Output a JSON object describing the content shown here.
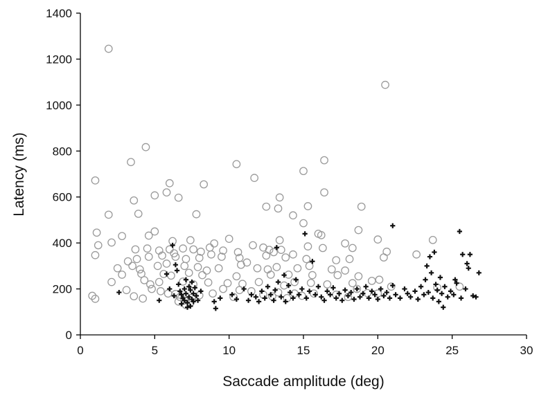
{
  "chart_data": {
    "type": "scatter",
    "title": "",
    "xlabel": "Saccade amplitude (deg)",
    "ylabel": "Latency (ms)",
    "xlim": [
      0,
      30
    ],
    "ylim": [
      0,
      1400
    ],
    "xticks": [
      0,
      5,
      10,
      15,
      20,
      25,
      30
    ],
    "yticks": [
      0,
      200,
      400,
      600,
      800,
      1000,
      1200,
      1400
    ],
    "xtick_labels": [
      "0",
      "5",
      "10",
      "15",
      "20",
      "25",
      "30"
    ],
    "ytick_labels": [
      "0",
      "200",
      "400",
      "600",
      "800",
      "1000",
      "1200",
      "1400"
    ],
    "grid": false,
    "legend": "none",
    "series": [
      {
        "marker": "open-circle",
        "color": "#9a9a9a",
        "points": [
          [
            1.9,
            1245
          ],
          [
            20.5,
            1088
          ],
          [
            4.4,
            817
          ],
          [
            3.4,
            752
          ],
          [
            10.5,
            743
          ],
          [
            16.4,
            760
          ],
          [
            15.0,
            713
          ],
          [
            1.0,
            672
          ],
          [
            11.7,
            683
          ],
          [
            6.0,
            660
          ],
          [
            8.3,
            655
          ],
          [
            16.4,
            620
          ],
          [
            5.8,
            620
          ],
          [
            13.4,
            598
          ],
          [
            5.0,
            607
          ],
          [
            6.6,
            597
          ],
          [
            3.6,
            585
          ],
          [
            12.5,
            558
          ],
          [
            15.3,
            560
          ],
          [
            13.3,
            550
          ],
          [
            18.9,
            558
          ],
          [
            1.9,
            523
          ],
          [
            7.8,
            525
          ],
          [
            3.9,
            527
          ],
          [
            14.3,
            520
          ],
          [
            15.0,
            486
          ],
          [
            18.7,
            456
          ],
          [
            1.1,
            445
          ],
          [
            2.8,
            430
          ],
          [
            4.6,
            432
          ],
          [
            5.0,
            450
          ],
          [
            6.2,
            408
          ],
          [
            7.4,
            412
          ],
          [
            10.0,
            418
          ],
          [
            13.4,
            412
          ],
          [
            16.0,
            440
          ],
          [
            16.2,
            434
          ],
          [
            20.0,
            415
          ],
          [
            23.7,
            413
          ],
          [
            1.2,
            390
          ],
          [
            2.1,
            402
          ],
          [
            3.7,
            372
          ],
          [
            4.5,
            376
          ],
          [
            5.3,
            367
          ],
          [
            6.0,
            372
          ],
          [
            6.3,
            355
          ],
          [
            6.9,
            376
          ],
          [
            7.6,
            372
          ],
          [
            8.1,
            362
          ],
          [
            8.7,
            380
          ],
          [
            9.0,
            398
          ],
          [
            9.6,
            367
          ],
          [
            10.6,
            360
          ],
          [
            11.6,
            390
          ],
          [
            12.3,
            380
          ],
          [
            12.7,
            370
          ],
          [
            13.0,
            360
          ],
          [
            13.5,
            370
          ],
          [
            14.3,
            350
          ],
          [
            15.3,
            385
          ],
          [
            16.3,
            378
          ],
          [
            17.8,
            398
          ],
          [
            18.3,
            378
          ],
          [
            20.6,
            362
          ],
          [
            20.4,
            337
          ],
          [
            22.6,
            350
          ],
          [
            1.0,
            347
          ],
          [
            3.2,
            320
          ],
          [
            3.8,
            330
          ],
          [
            4.6,
            340
          ],
          [
            5.5,
            345
          ],
          [
            6.4,
            340
          ],
          [
            7.1,
            330
          ],
          [
            8.0,
            335
          ],
          [
            8.8,
            350
          ],
          [
            9.5,
            340
          ],
          [
            10.7,
            335
          ],
          [
            11.2,
            315
          ],
          [
            12.5,
            345
          ],
          [
            13.8,
            337
          ],
          [
            15.2,
            330
          ],
          [
            17.2,
            325
          ],
          [
            18.1,
            330
          ],
          [
            2.5,
            290
          ],
          [
            3.5,
            300
          ],
          [
            4.0,
            285
          ],
          [
            5.2,
            300
          ],
          [
            5.8,
            310
          ],
          [
            7.0,
            300
          ],
          [
            7.9,
            295
          ],
          [
            8.5,
            280
          ],
          [
            9.3,
            290
          ],
          [
            10.8,
            305
          ],
          [
            11.9,
            290
          ],
          [
            12.6,
            285
          ],
          [
            13.2,
            295
          ],
          [
            14.6,
            290
          ],
          [
            15.4,
            300
          ],
          [
            16.9,
            285
          ],
          [
            17.8,
            280
          ],
          [
            2.8,
            262
          ],
          [
            4.1,
            266
          ],
          [
            5.6,
            265
          ],
          [
            6.1,
            258
          ],
          [
            7.3,
            270
          ],
          [
            8.2,
            260
          ],
          [
            10.5,
            255
          ],
          [
            12.8,
            262
          ],
          [
            14.0,
            262
          ],
          [
            15.6,
            260
          ],
          [
            17.3,
            260
          ],
          [
            18.7,
            255
          ],
          [
            2.1,
            230
          ],
          [
            4.3,
            238
          ],
          [
            4.7,
            220
          ],
          [
            5.3,
            230
          ],
          [
            6.9,
            232
          ],
          [
            7.6,
            220
          ],
          [
            8.6,
            228
          ],
          [
            9.9,
            225
          ],
          [
            10.9,
            222
          ],
          [
            12.0,
            230
          ],
          [
            13.7,
            215
          ],
          [
            14.4,
            230
          ],
          [
            15.5,
            226
          ],
          [
            16.6,
            220
          ],
          [
            18.3,
            225
          ],
          [
            19.6,
            235
          ],
          [
            20.1,
            240
          ],
          [
            25.5,
            210
          ],
          [
            0.8,
            170
          ],
          [
            1.0,
            157
          ],
          [
            3.1,
            195
          ],
          [
            3.6,
            168
          ],
          [
            4.2,
            158
          ],
          [
            4.8,
            200
          ],
          [
            5.4,
            190
          ],
          [
            5.9,
            180
          ],
          [
            6.4,
            178
          ],
          [
            6.7,
            165
          ],
          [
            7.0,
            150
          ],
          [
            7.5,
            160
          ],
          [
            8.0,
            172
          ],
          [
            8.9,
            180
          ],
          [
            9.6,
            200
          ],
          [
            10.3,
            165
          ],
          [
            10.7,
            195
          ],
          [
            11.5,
            190
          ],
          [
            12.3,
            175
          ],
          [
            12.9,
            168
          ],
          [
            13.3,
            185
          ],
          [
            13.9,
            160
          ],
          [
            14.4,
            180
          ],
          [
            14.9,
            170
          ],
          [
            15.7,
            180
          ],
          [
            17.2,
            175
          ],
          [
            18.0,
            165
          ],
          [
            18.6,
            200
          ],
          [
            19.3,
            182
          ],
          [
            20.0,
            180
          ],
          [
            20.9,
            210
          ],
          [
            24.0,
            206
          ],
          [
            6.6,
            145
          ],
          [
            7.1,
            130
          ],
          [
            7.4,
            140
          ]
        ]
      },
      {
        "marker": "plus",
        "color": "#111111",
        "points": [
          [
            2.6,
            185
          ],
          [
            5.3,
            150
          ],
          [
            5.8,
            265
          ],
          [
            6.2,
            390
          ],
          [
            6.4,
            305
          ],
          [
            6.5,
            280
          ],
          [
            6.6,
            220
          ],
          [
            6.7,
            190
          ],
          [
            6.8,
            175
          ],
          [
            6.9,
            160
          ],
          [
            7.0,
            200
          ],
          [
            7.0,
            150
          ],
          [
            7.1,
            240
          ],
          [
            7.1,
            180
          ],
          [
            7.2,
            140
          ],
          [
            7.3,
            210
          ],
          [
            7.3,
            165
          ],
          [
            7.4,
            195
          ],
          [
            7.4,
            125
          ],
          [
            7.5,
            230
          ],
          [
            7.5,
            155
          ],
          [
            7.6,
            180
          ],
          [
            7.6,
            145
          ],
          [
            7.7,
            205
          ],
          [
            7.8,
            170
          ],
          [
            6.0,
            200
          ],
          [
            6.3,
            170
          ],
          [
            6.8,
            135
          ],
          [
            7.2,
            120
          ],
          [
            7.9,
            150
          ],
          [
            8.1,
            190
          ],
          [
            9.0,
            145
          ],
          [
            9.1,
            115
          ],
          [
            9.4,
            160
          ],
          [
            10.2,
            175
          ],
          [
            10.5,
            155
          ],
          [
            11.0,
            200
          ],
          [
            11.3,
            150
          ],
          [
            11.5,
            175
          ],
          [
            11.8,
            165
          ],
          [
            12.0,
            145
          ],
          [
            12.2,
            190
          ],
          [
            12.4,
            160
          ],
          [
            12.6,
            210
          ],
          [
            12.8,
            175
          ],
          [
            13.0,
            150
          ],
          [
            13.1,
            195
          ],
          [
            13.2,
            380
          ],
          [
            13.3,
            230
          ],
          [
            13.5,
            165
          ],
          [
            13.7,
            260
          ],
          [
            13.8,
            145
          ],
          [
            14.0,
            215
          ],
          [
            14.1,
            185
          ],
          [
            14.3,
            160
          ],
          [
            14.5,
            240
          ],
          [
            14.7,
            175
          ],
          [
            14.9,
            200
          ],
          [
            15.1,
            440
          ],
          [
            15.2,
            160
          ],
          [
            15.4,
            190
          ],
          [
            15.6,
            320
          ],
          [
            15.8,
            175
          ],
          [
            16.0,
            210
          ],
          [
            16.2,
            165
          ],
          [
            16.4,
            150
          ],
          [
            16.6,
            190
          ],
          [
            16.8,
            175
          ],
          [
            17.0,
            205
          ],
          [
            17.2,
            160
          ],
          [
            17.4,
            180
          ],
          [
            17.6,
            150
          ],
          [
            17.8,
            195
          ],
          [
            18.0,
            170
          ],
          [
            18.2,
            185
          ],
          [
            18.4,
            155
          ],
          [
            18.6,
            200
          ],
          [
            18.8,
            165
          ],
          [
            19.0,
            180
          ],
          [
            19.2,
            210
          ],
          [
            19.4,
            160
          ],
          [
            19.6,
            190
          ],
          [
            19.8,
            175
          ],
          [
            20.0,
            155
          ],
          [
            20.2,
            200
          ],
          [
            20.4,
            170
          ],
          [
            20.6,
            185
          ],
          [
            20.8,
            160
          ],
          [
            21.0,
            475
          ],
          [
            21.0,
            215
          ],
          [
            21.2,
            175
          ],
          [
            21.5,
            160
          ],
          [
            21.8,
            200
          ],
          [
            22.0,
            180
          ],
          [
            22.2,
            165
          ],
          [
            22.5,
            190
          ],
          [
            22.7,
            155
          ],
          [
            22.9,
            210
          ],
          [
            23.1,
            175
          ],
          [
            23.2,
            240
          ],
          [
            23.3,
            300
          ],
          [
            23.4,
            185
          ],
          [
            23.5,
            340
          ],
          [
            23.6,
            270
          ],
          [
            23.7,
            160
          ],
          [
            23.8,
            360
          ],
          [
            23.9,
            220
          ],
          [
            24.0,
            195
          ],
          [
            24.1,
            145
          ],
          [
            24.2,
            250
          ],
          [
            24.3,
            180
          ],
          [
            24.4,
            120
          ],
          [
            24.5,
            210
          ],
          [
            24.7,
            165
          ],
          [
            24.9,
            190
          ],
          [
            25.1,
            175
          ],
          [
            25.3,
            225
          ],
          [
            25.5,
            450
          ],
          [
            25.6,
            160
          ],
          [
            25.7,
            350
          ],
          [
            25.9,
            200
          ],
          [
            26.1,
            290
          ],
          [
            26.2,
            350
          ],
          [
            26.4,
            170
          ],
          [
            26.6,
            165
          ],
          [
            26.8,
            270
          ],
          [
            26.0,
            310
          ],
          [
            25.2,
            240
          ]
        ]
      }
    ]
  }
}
